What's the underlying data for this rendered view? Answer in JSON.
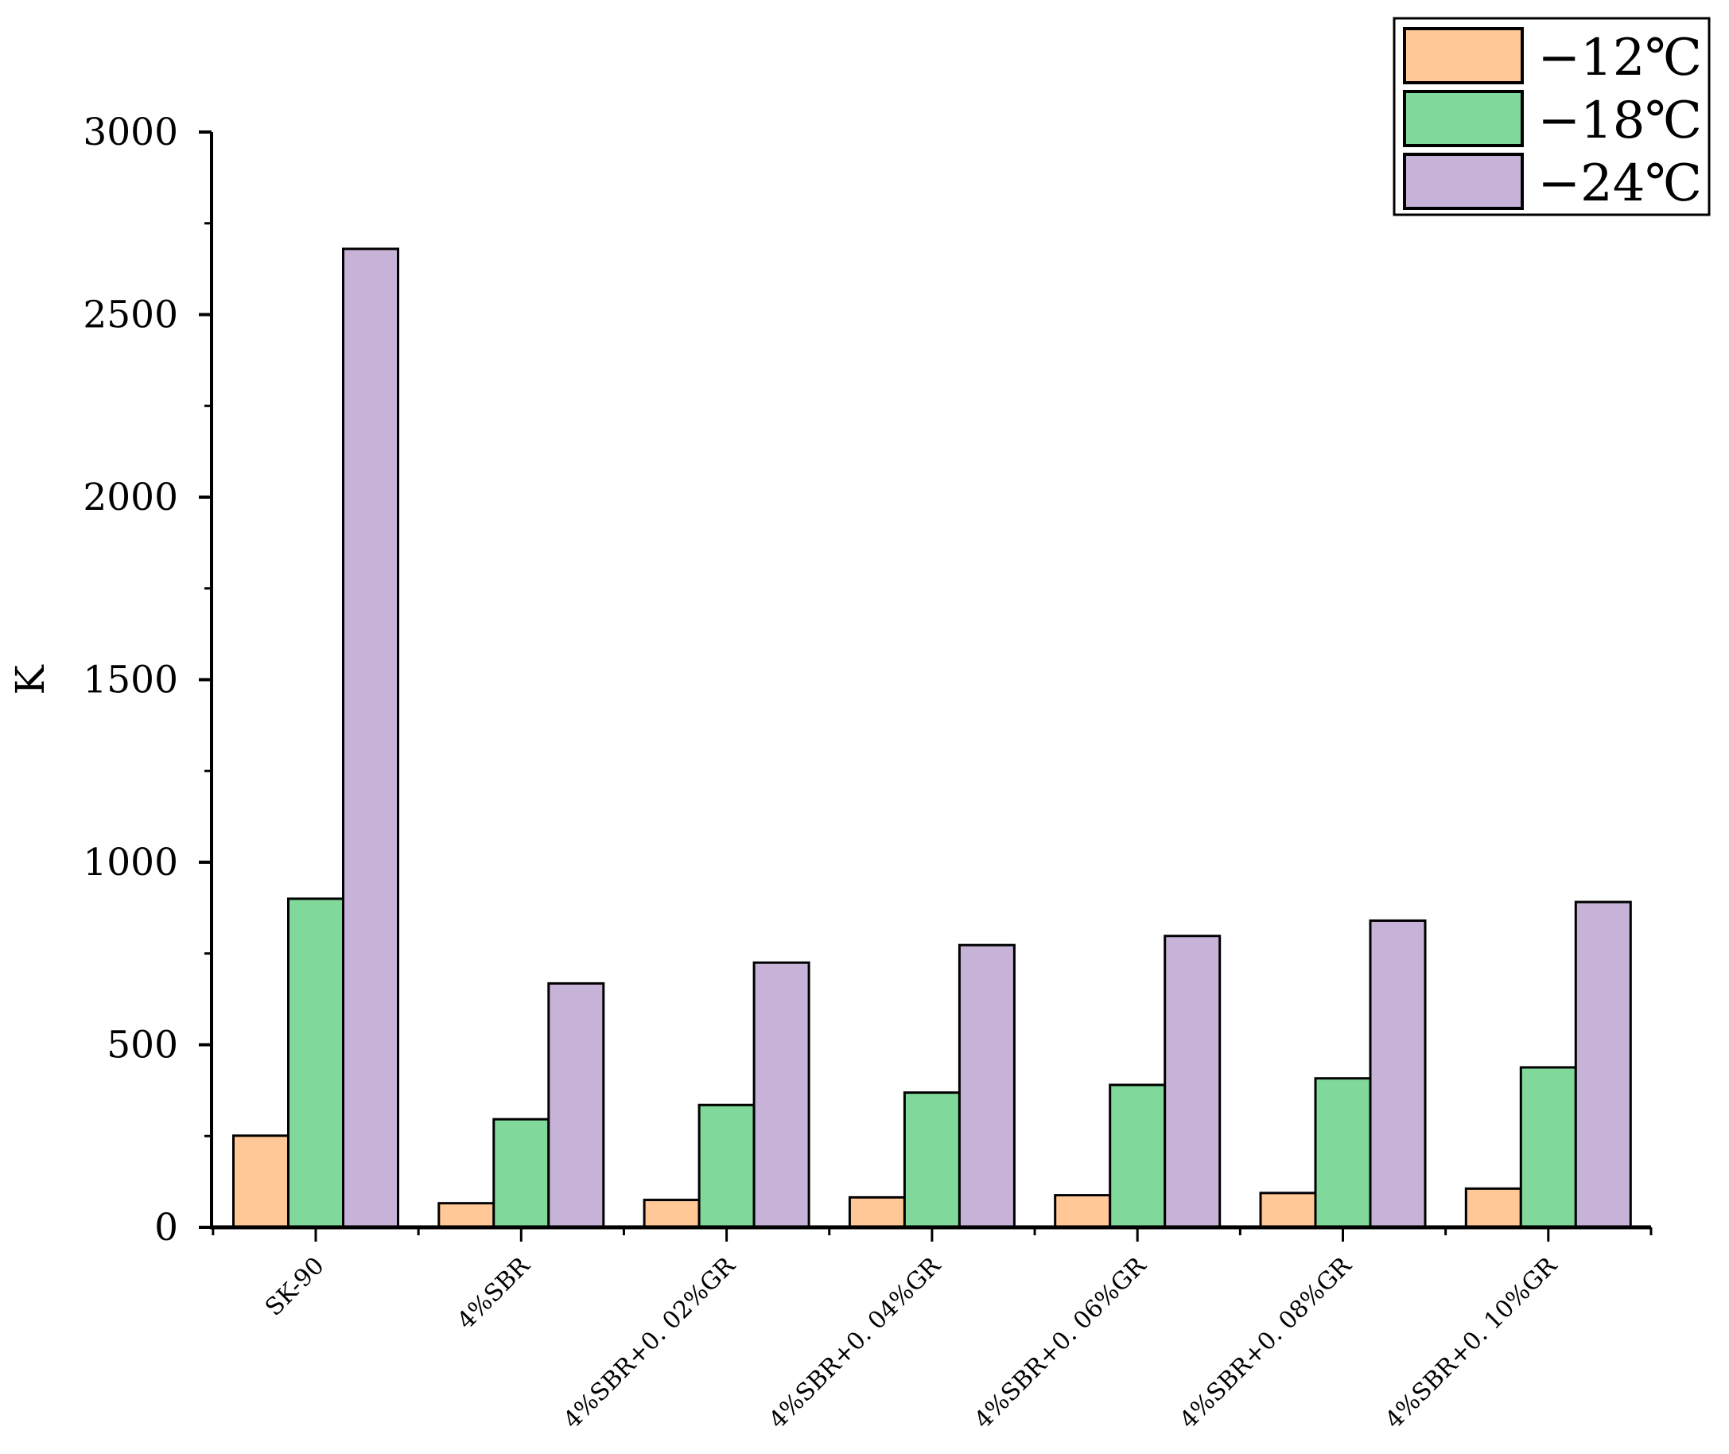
{
  "chart_data": {
    "type": "bar",
    "title": "",
    "xlabel": "",
    "ylabel": "K",
    "ylim": [
      0,
      3000
    ],
    "yticks": [
      0,
      500,
      1000,
      1500,
      2000,
      2500,
      3000
    ],
    "grid": false,
    "legend_position": "top-right",
    "categories": [
      "SK-90",
      "4%SBR",
      "4%SBR+0. 02%GR",
      "4%SBR+0. 04%GR",
      "4%SBR+0. 06%GR",
      "4%SBR+0. 08%GR",
      "4%SBR+0. 10%GR"
    ],
    "series": [
      {
        "name": "−12℃",
        "color": "#FFC896",
        "values": [
          251,
          66,
          75,
          82,
          88,
          94,
          106
        ]
      },
      {
        "name": "−18℃",
        "color": "#80D89A",
        "values": [
          900,
          296,
          335,
          369,
          390,
          408,
          438
        ]
      },
      {
        "name": "−24℃",
        "color": "#C8B3D8",
        "values": [
          2680,
          668,
          725,
          773,
          798,
          840,
          891
        ]
      }
    ]
  }
}
